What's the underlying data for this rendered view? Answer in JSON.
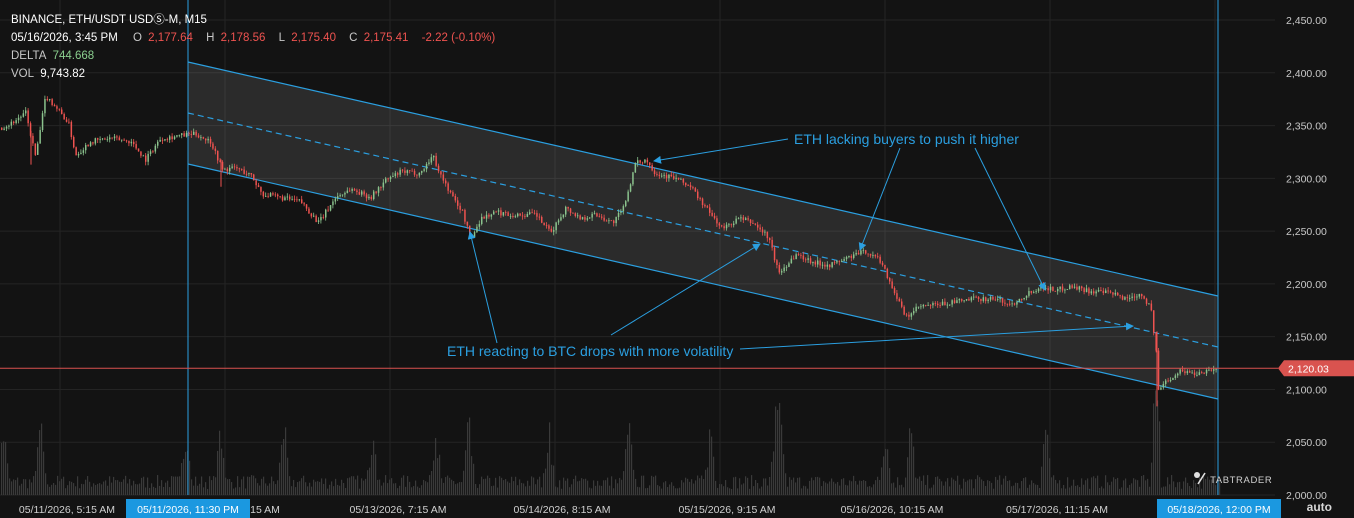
{
  "header": {
    "symbol": "BINANCE, ETH/USDT USDⓈ-M, M15",
    "datetime": "05/16/2026, 3:45 PM",
    "o_label": "O",
    "o_value": "2,177.64",
    "h_label": "H",
    "h_value": "2,178.56",
    "l_label": "L",
    "l_value": "2,175.40",
    "c_label": "C",
    "c_value": "2,175.41",
    "change": "-2.22 (-0.10%)",
    "delta_label": "DELTA",
    "delta_value": "744.668",
    "vol_label": "VOL",
    "vol_value": "9,743.82"
  },
  "colors": {
    "background": "#131313",
    "grid": "#242424",
    "up": "#8bc38d",
    "down": "#ef5350",
    "channel": "#2b9fe0",
    "price_line": "#d9534f",
    "badge": "#1b98e0"
  },
  "chart_data": {
    "type": "candlestick",
    "interval": "M15",
    "ylim": [
      2000,
      2465
    ],
    "y_ticks": [
      "2,000.00",
      "2,050.00",
      "2,100.00",
      "2,150.00",
      "2,200.00",
      "2,250.00",
      "2,300.00",
      "2,350.00",
      "2,400.00",
      "2,450.00"
    ],
    "x_tick_labels": [
      "05/11/2026, 5:15 AM",
      "05/11/2026, 11:30 PM",
      "15 AM",
      "05/13/2026, 7:15 AM",
      "05/14/2026, 8:15 AM",
      "05/15/2026, 9:15 AM",
      "05/16/2026, 10:15 AM",
      "05/17/2026, 11:15 AM",
      "05/18/2026, 12:00 PM"
    ],
    "highlighted_x_labels": [
      "05/11/2026, 11:30 PM",
      "05/18/2026, 12:00 PM"
    ],
    "current_price": "2,120.03",
    "current_price_value": 2120.03,
    "price_path": [
      [
        0,
        2348
      ],
      [
        10,
        2352
      ],
      [
        25,
        2362
      ],
      [
        35,
        2320
      ],
      [
        45,
        2378
      ],
      [
        55,
        2368
      ],
      [
        68,
        2352
      ],
      [
        75,
        2322
      ],
      [
        90,
        2335
      ],
      [
        110,
        2338
      ],
      [
        130,
        2335
      ],
      [
        145,
        2318
      ],
      [
        160,
        2338
      ],
      [
        175,
        2340
      ],
      [
        195,
        2342
      ],
      [
        210,
        2335
      ],
      [
        222,
        2308
      ],
      [
        235,
        2310
      ],
      [
        250,
        2303
      ],
      [
        262,
        2285
      ],
      [
        278,
        2282
      ],
      [
        300,
        2278
      ],
      [
        318,
        2258
      ],
      [
        335,
        2282
      ],
      [
        350,
        2290
      ],
      [
        370,
        2282
      ],
      [
        385,
        2298
      ],
      [
        400,
        2306
      ],
      [
        420,
        2305
      ],
      [
        432,
        2322
      ],
      [
        440,
        2303
      ],
      [
        452,
        2282
      ],
      [
        462,
        2268
      ],
      [
        470,
        2242
      ],
      [
        480,
        2262
      ],
      [
        495,
        2268
      ],
      [
        515,
        2265
      ],
      [
        535,
        2266
      ],
      [
        550,
        2248
      ],
      [
        565,
        2272
      ],
      [
        580,
        2262
      ],
      [
        595,
        2266
      ],
      [
        612,
        2258
      ],
      [
        622,
        2270
      ],
      [
        635,
        2314
      ],
      [
        645,
        2318
      ],
      [
        655,
        2305
      ],
      [
        675,
        2300
      ],
      [
        690,
        2292
      ],
      [
        705,
        2272
      ],
      [
        722,
        2252
      ],
      [
        738,
        2262
      ],
      [
        752,
        2258
      ],
      [
        768,
        2244
      ],
      [
        778,
        2210
      ],
      [
        795,
        2228
      ],
      [
        815,
        2220
      ],
      [
        830,
        2218
      ],
      [
        850,
        2226
      ],
      [
        865,
        2231
      ],
      [
        880,
        2222
      ],
      [
        892,
        2196
      ],
      [
        905,
        2168
      ],
      [
        918,
        2178
      ],
      [
        935,
        2180
      ],
      [
        955,
        2183
      ],
      [
        975,
        2186
      ],
      [
        995,
        2186
      ],
      [
        1010,
        2180
      ],
      [
        1025,
        2190
      ],
      [
        1040,
        2198
      ],
      [
        1055,
        2194
      ],
      [
        1070,
        2198
      ],
      [
        1090,
        2193
      ],
      [
        1110,
        2191
      ],
      [
        1125,
        2186
      ],
      [
        1140,
        2191
      ],
      [
        1150,
        2178
      ],
      [
        1155,
        2140
      ],
      [
        1158,
        2098
      ],
      [
        1165,
        2108
      ],
      [
        1180,
        2118
      ],
      [
        1195,
        2115
      ],
      [
        1205,
        2118
      ],
      [
        1218,
        2120
      ]
    ],
    "volume_spike_x": [
      3,
      40,
      185,
      220,
      283,
      372,
      435,
      468,
      548,
      628,
      710,
      775,
      780,
      885,
      910,
      1045,
      1155
    ]
  },
  "annotations": {
    "top": "ETH lacking buyers to push it higher",
    "bottom": "ETH reacting to BTC drops with more volatility"
  },
  "watermark": "TABTRADER",
  "scale_mode": "auto"
}
